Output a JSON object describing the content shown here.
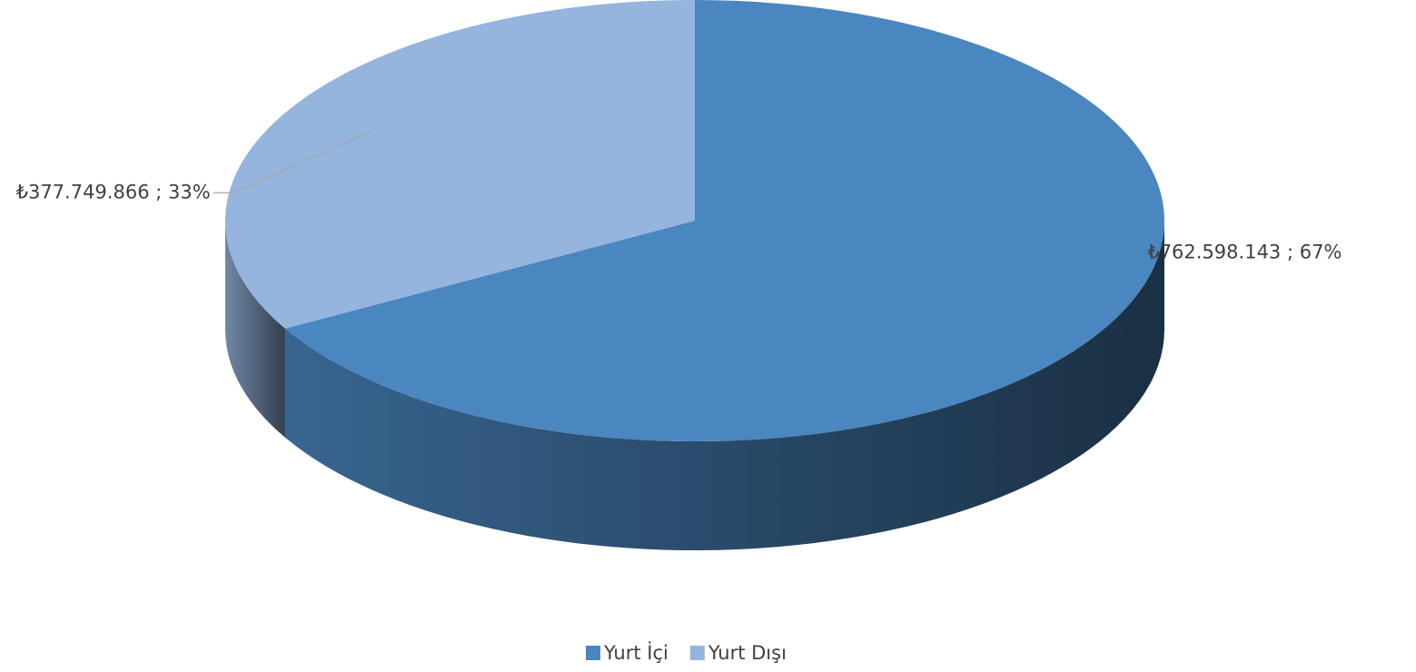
{
  "chart_data": {
    "type": "pie3d",
    "categories": [
      "Yurt İçi",
      "Yurt Dışı"
    ],
    "values": [
      762598143,
      377749866
    ],
    "value_labels": [
      "₺762.598.143 ; 67%",
      "₺377.749.866 ; 33%"
    ],
    "colors": [
      "#4a86c0",
      "#95b4de"
    ],
    "legend": "bottom"
  }
}
